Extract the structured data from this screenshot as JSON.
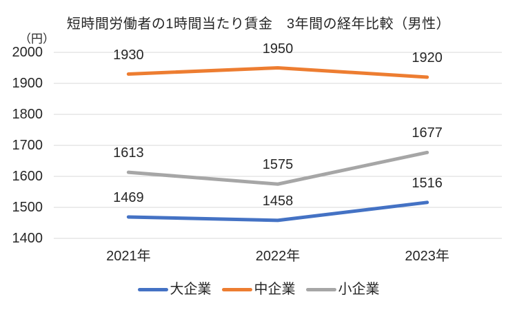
{
  "chart_data": {
    "type": "line",
    "title": "短時間労働者の1時間当たり賃金　3年間の経年比較（男性）",
    "unit_label": "（円）",
    "categories": [
      "2021年",
      "2022年",
      "2023年"
    ],
    "series": [
      {
        "name": "大企業",
        "color": "#4472C4",
        "values": [
          1469,
          1458,
          1516
        ]
      },
      {
        "name": "中企業",
        "color": "#ED7D31",
        "values": [
          1930,
          1950,
          1920
        ]
      },
      {
        "name": "小企業",
        "color": "#A6A6A6",
        "values": [
          1613,
          1575,
          1677
        ]
      }
    ],
    "yticks": [
      2000,
      1900,
      1800,
      1700,
      1600,
      1500,
      1400
    ],
    "ylim": [
      1400,
      2000
    ],
    "grid": true,
    "data_labels": true,
    "legend_position": "bottom",
    "gridline_color": "#D9D9D9",
    "text_color": "#262626"
  }
}
